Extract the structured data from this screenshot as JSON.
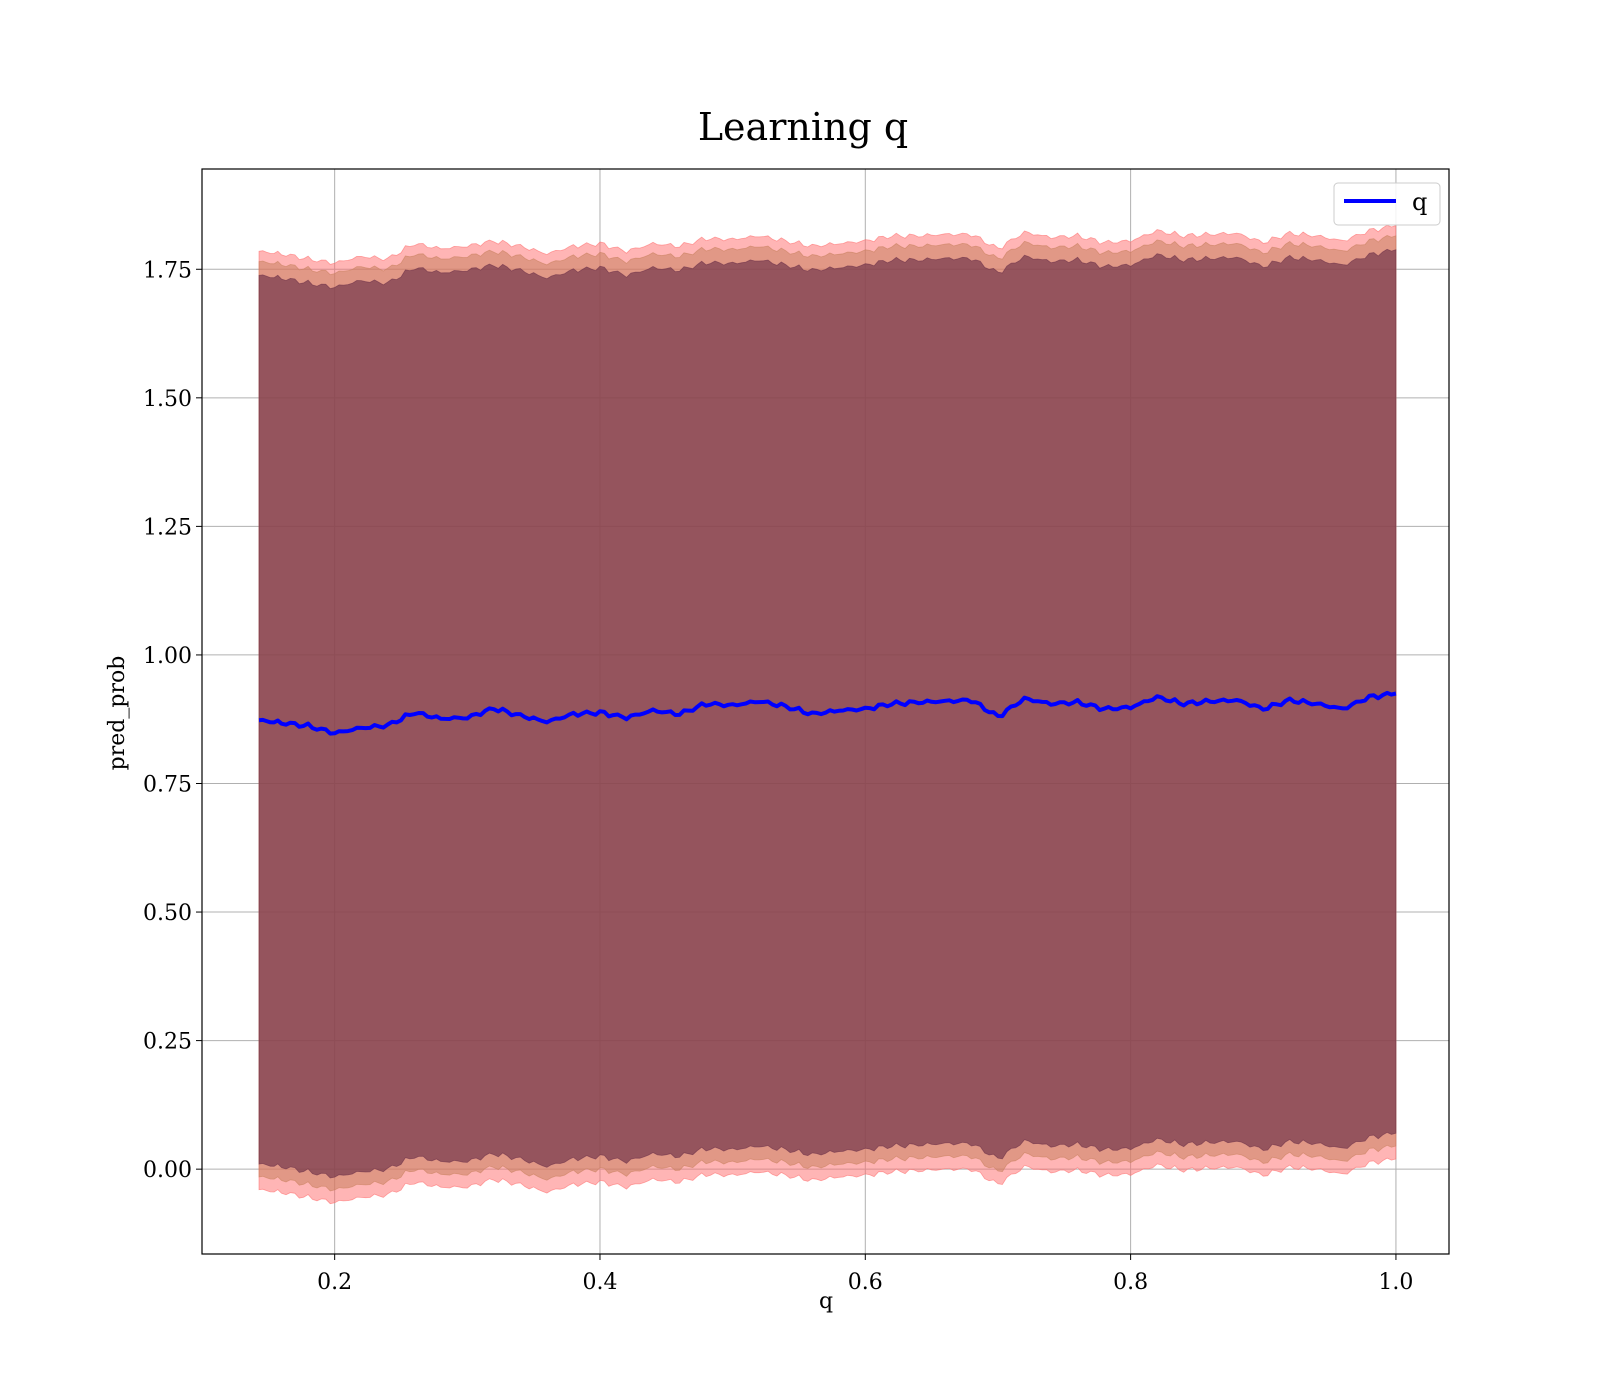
{
  "chart_data": {
    "type": "line",
    "title": "Learning q",
    "xlabel": "q",
    "ylabel": "pred_prob",
    "xlim": [
      0.1,
      1.04
    ],
    "ylim": [
      -0.165,
      1.945
    ],
    "xticks": [
      0.2,
      0.4,
      0.6,
      0.8,
      1.0
    ],
    "xtick_labels": [
      "0.2",
      "0.4",
      "0.6",
      "0.8",
      "1.0"
    ],
    "yticks": [
      0.0,
      0.25,
      0.5,
      0.75,
      1.0,
      1.25,
      1.5,
      1.75
    ],
    "ytick_labels": [
      "0.00",
      "0.25",
      "0.50",
      "0.75",
      "1.00",
      "1.25",
      "1.50",
      "1.75"
    ],
    "grid": true,
    "legend": {
      "placement": "top-right",
      "entries": [
        {
          "label": "q",
          "color": "#0000ff"
        }
      ]
    },
    "series": [
      {
        "name": "q",
        "color": "#0000ff",
        "x": [
          0.143,
          0.16,
          0.18,
          0.2,
          0.22,
          0.24,
          0.26,
          0.28,
          0.3,
          0.32,
          0.34,
          0.36,
          0.38,
          0.4,
          0.42,
          0.44,
          0.46,
          0.48,
          0.5,
          0.52,
          0.54,
          0.56,
          0.58,
          0.6,
          0.62,
          0.64,
          0.66,
          0.68,
          0.7,
          0.72,
          0.74,
          0.76,
          0.78,
          0.8,
          0.82,
          0.84,
          0.86,
          0.88,
          0.9,
          0.92,
          0.94,
          0.96,
          0.98,
          1.0
        ],
        "y": [
          0.873,
          0.868,
          0.862,
          0.848,
          0.858,
          0.863,
          0.888,
          0.876,
          0.878,
          0.896,
          0.882,
          0.87,
          0.885,
          0.888,
          0.878,
          0.892,
          0.885,
          0.905,
          0.902,
          0.91,
          0.9,
          0.885,
          0.892,
          0.895,
          0.905,
          0.908,
          0.91,
          0.912,
          0.88,
          0.915,
          0.905,
          0.908,
          0.895,
          0.898,
          0.918,
          0.905,
          0.91,
          0.912,
          0.895,
          0.912,
          0.905,
          0.895,
          0.918,
          0.925
        ]
      }
    ],
    "bands": [
      {
        "color": "#ff6b6b",
        "opacity": 0.5,
        "x": [
          0.143,
          0.16,
          0.18,
          0.2,
          0.22,
          0.24,
          0.26,
          0.28,
          0.3,
          0.32,
          0.34,
          0.36,
          0.38,
          0.4,
          0.42,
          0.44,
          0.46,
          0.48,
          0.5,
          0.52,
          0.54,
          0.56,
          0.58,
          0.6,
          0.62,
          0.64,
          0.66,
          0.68,
          0.7,
          0.72,
          0.74,
          0.76,
          0.78,
          0.8,
          0.82,
          0.84,
          0.86,
          0.88,
          0.9,
          0.92,
          0.94,
          0.96,
          0.98,
          1.0
        ],
        "upper": [
          1.785,
          1.78,
          1.77,
          1.762,
          1.775,
          1.77,
          1.8,
          1.79,
          1.795,
          1.805,
          1.795,
          1.78,
          1.795,
          1.8,
          1.785,
          1.8,
          1.795,
          1.81,
          1.808,
          1.815,
          1.805,
          1.795,
          1.8,
          1.805,
          1.815,
          1.815,
          1.818,
          1.818,
          1.79,
          1.822,
          1.812,
          1.815,
          1.802,
          1.805,
          1.825,
          1.815,
          1.818,
          1.82,
          1.802,
          1.82,
          1.815,
          1.805,
          1.825,
          1.835
        ],
        "lower": [
          -0.04,
          -0.045,
          -0.055,
          -0.065,
          -0.055,
          -0.05,
          -0.025,
          -0.035,
          -0.035,
          -0.02,
          -0.03,
          -0.045,
          -0.03,
          -0.025,
          -0.035,
          -0.02,
          -0.025,
          -0.01,
          -0.012,
          -0.005,
          -0.012,
          -0.022,
          -0.015,
          -0.012,
          -0.005,
          -0.003,
          0.0,
          0.0,
          -0.03,
          0.005,
          -0.005,
          -0.002,
          -0.012,
          -0.01,
          0.008,
          -0.002,
          0.002,
          0.004,
          -0.012,
          0.004,
          0.0,
          -0.01,
          0.012,
          0.02
        ]
      },
      {
        "color": "#c8805e",
        "opacity": 0.55,
        "x": [
          0.143,
          0.16,
          0.18,
          0.2,
          0.22,
          0.24,
          0.26,
          0.28,
          0.3,
          0.32,
          0.34,
          0.36,
          0.38,
          0.4,
          0.42,
          0.44,
          0.46,
          0.48,
          0.5,
          0.52,
          0.54,
          0.56,
          0.58,
          0.6,
          0.62,
          0.64,
          0.66,
          0.68,
          0.7,
          0.72,
          0.74,
          0.76,
          0.78,
          0.8,
          0.82,
          0.84,
          0.86,
          0.88,
          0.9,
          0.92,
          0.94,
          0.96,
          0.98,
          1.0
        ],
        "upper": [
          1.765,
          1.76,
          1.75,
          1.742,
          1.755,
          1.75,
          1.78,
          1.77,
          1.775,
          1.785,
          1.775,
          1.76,
          1.775,
          1.78,
          1.765,
          1.78,
          1.775,
          1.79,
          1.788,
          1.795,
          1.785,
          1.775,
          1.78,
          1.785,
          1.795,
          1.795,
          1.798,
          1.798,
          1.77,
          1.802,
          1.792,
          1.795,
          1.782,
          1.785,
          1.805,
          1.795,
          1.798,
          1.8,
          1.782,
          1.8,
          1.795,
          1.785,
          1.805,
          1.815
        ],
        "lower": [
          -0.015,
          -0.02,
          -0.03,
          -0.04,
          -0.03,
          -0.025,
          0.0,
          -0.01,
          -0.01,
          0.005,
          -0.005,
          -0.02,
          -0.005,
          0.0,
          -0.01,
          0.005,
          0.0,
          0.015,
          0.013,
          0.02,
          0.013,
          0.003,
          0.01,
          0.013,
          0.02,
          0.022,
          0.025,
          0.025,
          -0.005,
          0.03,
          0.02,
          0.023,
          0.013,
          0.015,
          0.033,
          0.023,
          0.027,
          0.029,
          0.013,
          0.029,
          0.025,
          0.015,
          0.037,
          0.045
        ]
      },
      {
        "color": "#6b2f47",
        "opacity": 0.65,
        "x": [
          0.143,
          0.16,
          0.18,
          0.2,
          0.22,
          0.24,
          0.26,
          0.28,
          0.3,
          0.32,
          0.34,
          0.36,
          0.38,
          0.4,
          0.42,
          0.44,
          0.46,
          0.48,
          0.5,
          0.52,
          0.54,
          0.56,
          0.58,
          0.6,
          0.62,
          0.64,
          0.66,
          0.68,
          0.7,
          0.72,
          0.74,
          0.76,
          0.78,
          0.8,
          0.82,
          0.84,
          0.86,
          0.88,
          0.9,
          0.92,
          0.94,
          0.96,
          0.98,
          1.0
        ],
        "upper": [
          1.738,
          1.733,
          1.723,
          1.715,
          1.728,
          1.723,
          1.753,
          1.743,
          1.748,
          1.758,
          1.748,
          1.733,
          1.748,
          1.753,
          1.738,
          1.753,
          1.748,
          1.763,
          1.761,
          1.768,
          1.758,
          1.748,
          1.753,
          1.758,
          1.768,
          1.768,
          1.771,
          1.771,
          1.743,
          1.775,
          1.765,
          1.768,
          1.755,
          1.758,
          1.778,
          1.768,
          1.771,
          1.773,
          1.755,
          1.773,
          1.768,
          1.758,
          1.778,
          1.788
        ],
        "lower": [
          0.01,
          0.005,
          -0.005,
          -0.015,
          -0.005,
          0.0,
          0.025,
          0.015,
          0.015,
          0.03,
          0.02,
          0.005,
          0.02,
          0.025,
          0.015,
          0.03,
          0.025,
          0.04,
          0.038,
          0.045,
          0.038,
          0.028,
          0.035,
          0.038,
          0.045,
          0.047,
          0.05,
          0.05,
          0.02,
          0.055,
          0.045,
          0.048,
          0.038,
          0.04,
          0.058,
          0.048,
          0.052,
          0.054,
          0.038,
          0.054,
          0.05,
          0.04,
          0.062,
          0.07
        ]
      }
    ]
  }
}
